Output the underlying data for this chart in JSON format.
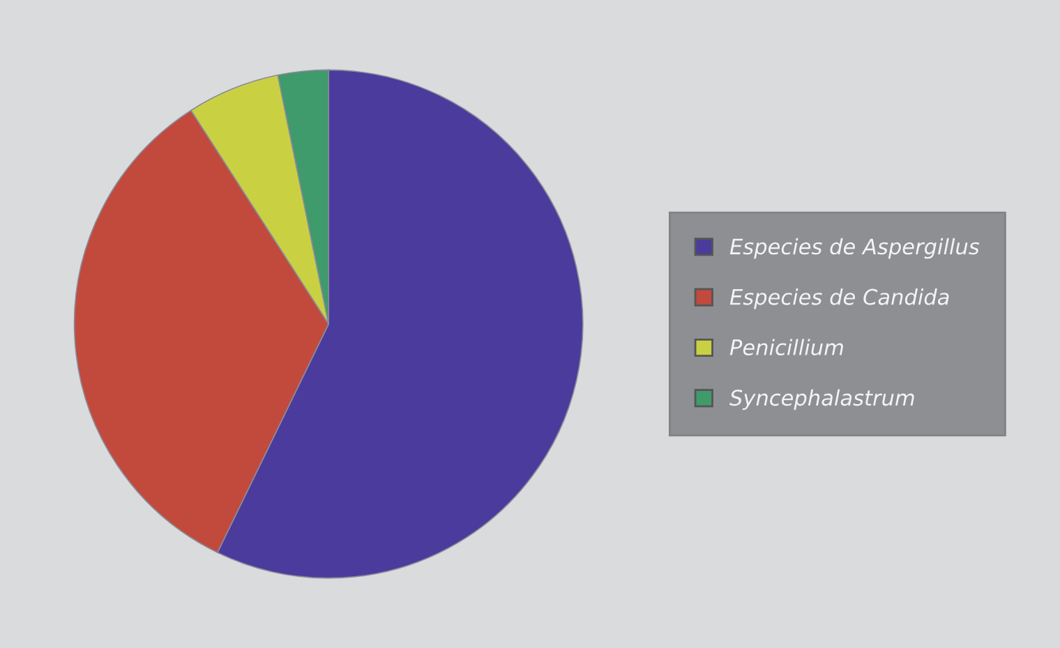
{
  "chart_data": {
    "type": "pie",
    "categories": [
      "Especies de Aspergillus",
      "Especies de Candida",
      "Penicillium",
      "Syncephalastrum"
    ],
    "values": [
      57.2,
      33.7,
      5.9,
      3.2
    ],
    "colors": [
      "#4b3b9c",
      "#c24a3c",
      "#c9d143",
      "#3f9a6c"
    ],
    "legend": "right"
  }
}
